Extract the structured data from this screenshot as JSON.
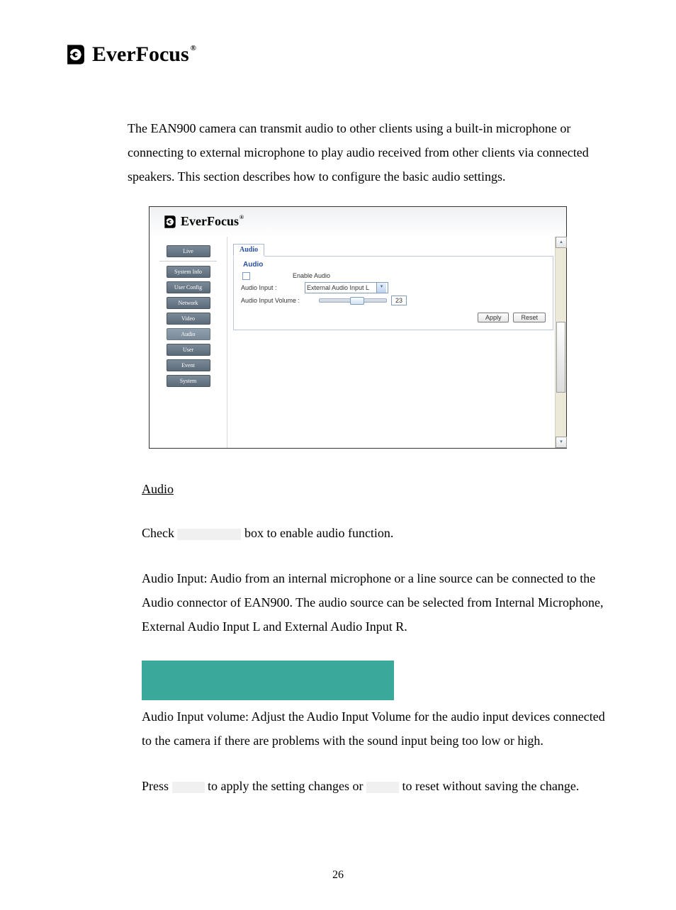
{
  "logo": {
    "brand": "EverFocus",
    "registered": "®"
  },
  "intro": "The EAN900 camera can transmit audio to other clients using a built-in microphone or connecting to external microphone to play audio received from other clients via connected speakers. This section describes how to configure the basic audio settings.",
  "shot": {
    "brand": "EverFocus",
    "registered": "®",
    "sidebar": {
      "items": [
        {
          "label": "Live",
          "active": false
        },
        {
          "label": "System Info",
          "active": false
        },
        {
          "label": "User Config",
          "active": false
        },
        {
          "label": "Network",
          "active": false
        },
        {
          "label": "Video",
          "active": false
        },
        {
          "label": "Audio",
          "active": true
        },
        {
          "label": "User",
          "active": false
        },
        {
          "label": "Event",
          "active": false
        },
        {
          "label": "System",
          "active": false
        }
      ]
    },
    "panel": {
      "tab": "Audio",
      "legend": "Audio",
      "enable_label": "Enable Audio",
      "input_label": "Audio Input :",
      "input_value": "External Audio Input L",
      "volume_label": "Audio Input Volume :",
      "volume_value": "23",
      "slider_percent": 46,
      "apply": "Apply",
      "reset": "Reset"
    }
  },
  "prose": {
    "heading": "Audio",
    "p1_a": "Check ",
    "p1_b": " box to enable audio function.",
    "p2": "Audio Input: Audio from an internal microphone or a line source can be connected to the Audio connector of EAN900. The audio source can be selected from Internal Microphone, External Audio Input L and External Audio Input R.",
    "p3": "Audio Input volume: Adjust the Audio Input Volume for the audio input devices connected to the camera if there are problems with the sound input being too low or high.",
    "p4_a": "Press ",
    "p4_b": " to apply the setting changes or ",
    "p4_c": " to reset without saving the change."
  },
  "page_number": "26",
  "colors": {
    "note_block": "#3aa89a",
    "link_blue": "#2a4fa0"
  }
}
